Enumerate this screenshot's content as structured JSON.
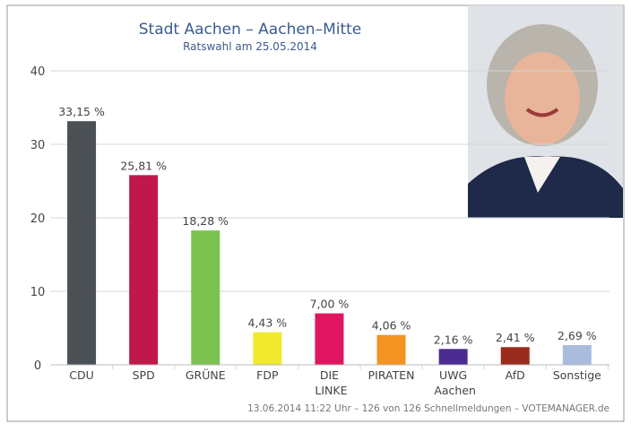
{
  "chart_data": {
    "type": "bar",
    "title": "Stadt Aachen – Aachen–Mitte",
    "subtitle": "Ratswahl am 25.05.2014",
    "categories": [
      "CDU",
      "SPD",
      "GRÜNE",
      "FDP",
      "DIE LINKE",
      "PIRATEN",
      "UWG Aachen",
      "AfD",
      "Sonstige"
    ],
    "values": [
      33.15,
      25.81,
      18.28,
      4.43,
      7.0,
      4.06,
      2.16,
      2.41,
      2.69
    ],
    "value_labels": [
      "33,15 %",
      "25,81 %",
      "18,28 %",
      "4,43 %",
      "7,00 %",
      "4,06 %",
      "2,16 %",
      "2,41 %",
      "2,69 %"
    ],
    "colors": [
      "#4b5055",
      "#c0184a",
      "#7cc250",
      "#f1e92e",
      "#e0155f",
      "#f39322",
      "#4a2c92",
      "#992b1d",
      "#a9bcdd"
    ],
    "ylim": [
      0,
      40
    ],
    "yticks": [
      0,
      10,
      20,
      30,
      40
    ],
    "grid": true,
    "footer": "13.06.2014 11:22 Uhr – 126 von 126 Schnellmeldungen – VOTEMANAGER.de"
  }
}
